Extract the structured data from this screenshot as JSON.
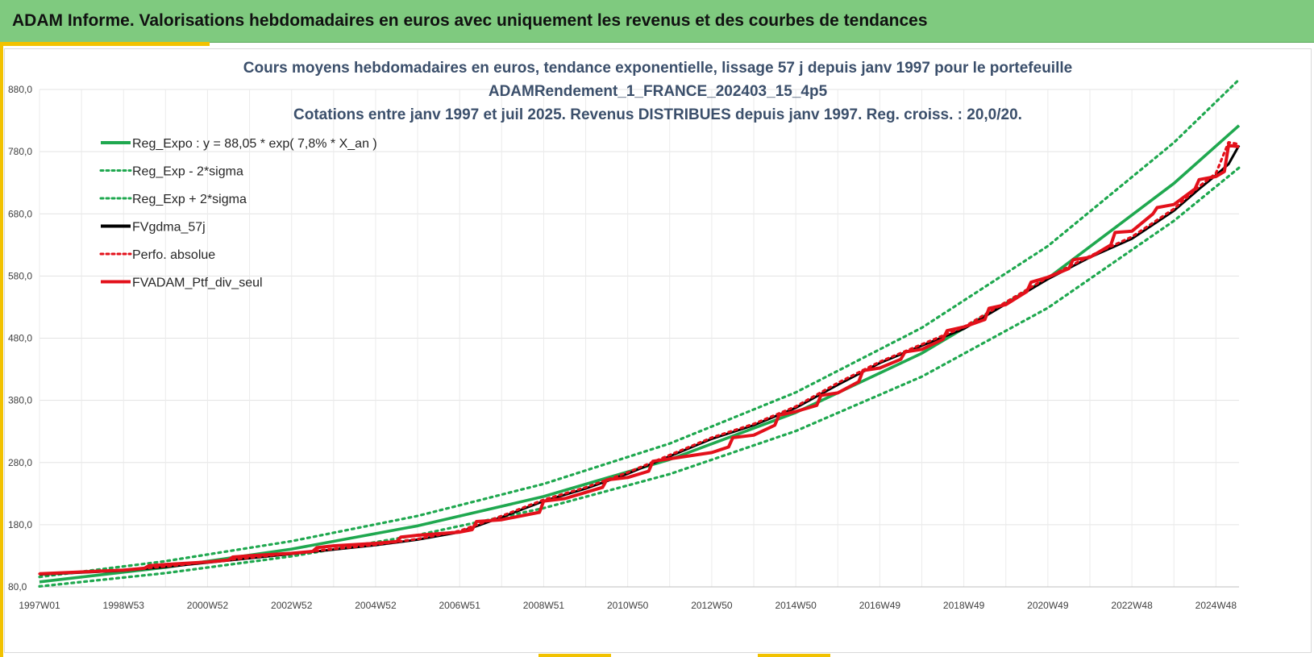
{
  "page": {
    "header_title": "ADAM Informe. Valorisations hebdomadaires en euros avec uniquement les revenus et des courbes de tendances"
  },
  "colors": {
    "header_bg": "#7fca7f",
    "accent": "#f2c200",
    "reg_green": "#1fa84f",
    "series_black": "#000000",
    "series_red": "#e3101a"
  },
  "chart_data": {
    "type": "line",
    "title_lines": [
      "Cours moyens hebdomadaires  en euros, tendance exponentielle, lissage 57 j depuis janv 1997 pour le portefeuille",
      "ADAMRendement_1_FRANCE_202403_15_4p5",
      "Cotations  entre janv 1997 et juil 2025. Revenus DISTRIBUES depuis janv 1997. Reg. croiss. : 20,0/20."
    ],
    "xlabel": "",
    "ylabel": "",
    "x_range": [
      1997.0,
      2025.55
    ],
    "x_tick_labels": [
      "1997W01",
      "1998W53",
      "2000W52",
      "2002W52",
      "2004W52",
      "2006W51",
      "2008W51",
      "2010W50",
      "2012W50",
      "2014W50",
      "2016W49",
      "2018W49",
      "2020W49",
      "2022W48",
      "2024W48"
    ],
    "x_tick_values": [
      1997.0,
      1999.0,
      2001.0,
      2003.0,
      2005.0,
      2007.0,
      2009.0,
      2011.0,
      2013.0,
      2015.0,
      2017.0,
      2019.0,
      2021.0,
      2023.0,
      2025.0
    ],
    "y_tick_labels": [
      "80,0",
      "180,0",
      "280,0",
      "380,0",
      "480,0",
      "580,0",
      "680,0",
      "780,0",
      "880,0"
    ],
    "ylim": [
      80,
      880
    ],
    "grid": true,
    "legend_position": "top-left",
    "regression": {
      "label": "Reg_Expo : y = 88,05 * exp( 7,8% *  X_an )",
      "intercept": 88.05,
      "rate": 0.078,
      "sigma_factor": 1.09
    },
    "series": [
      {
        "name": "Reg_Expo : y = 88,05 * exp( 7,8% *  X_an )",
        "style": "solid",
        "color": "#1fa84f",
        "x": [
          1997.0,
          2000.0,
          2003.0,
          2006.0,
          2009.0,
          2012.0,
          2015.0,
          2018.0,
          2021.0,
          2024.0,
          2025.55
        ],
        "values": [
          88.1,
          111.4,
          140.8,
          178.1,
          225.3,
          284.9,
          360.3,
          455.7,
          576.3,
          728.9,
          822.0
        ]
      },
      {
        "name": "Reg_Exp - 2*sigma",
        "style": "dotted",
        "color": "#1fa84f",
        "x": [
          1997.0,
          2000.0,
          2003.0,
          2006.0,
          2009.0,
          2012.0,
          2015.0,
          2018.0,
          2021.0,
          2024.0,
          2025.55
        ],
        "values": [
          80.8,
          102.2,
          129.2,
          163.4,
          206.7,
          261.4,
          330.6,
          418.1,
          528.7,
          668.7,
          754.1
        ]
      },
      {
        "name": "Reg_Exp + 2*sigma",
        "style": "dotted",
        "color": "#1fa84f",
        "x": [
          1997.0,
          2000.0,
          2003.0,
          2006.0,
          2009.0,
          2012.0,
          2015.0,
          2018.0,
          2021.0,
          2024.0,
          2025.55
        ],
        "values": [
          96.0,
          121.4,
          153.5,
          194.1,
          245.6,
          310.5,
          392.7,
          496.7,
          628.2,
          794.5,
          896.0
        ]
      },
      {
        "name": "FVgdma_57j",
        "style": "solid",
        "color": "#000000",
        "x": [
          1997.0,
          1998.0,
          1999.0,
          2000.0,
          2001.0,
          2002.0,
          2003.0,
          2004.0,
          2005.0,
          2006.0,
          2007.0,
          2008.0,
          2009.0,
          2010.0,
          2011.0,
          2012.0,
          2013.0,
          2014.0,
          2015.0,
          2016.0,
          2017.0,
          2018.0,
          2019.0,
          2020.0,
          2021.0,
          2022.0,
          2023.0,
          2024.0,
          2024.6,
          2025.0,
          2025.3,
          2025.55
        ],
        "values": [
          100,
          103,
          106,
          112,
          119,
          126,
          133,
          140,
          147,
          156,
          168,
          192,
          218,
          238,
          262,
          290,
          318,
          340,
          368,
          405,
          440,
          468,
          495,
          535,
          575,
          610,
          640,
          685,
          720,
          742,
          760,
          790
        ]
      },
      {
        "name": "Perfo. absolue",
        "style": "dotted",
        "color": "#e3101a",
        "x": [
          1997.0,
          1998.0,
          1999.0,
          2000.0,
          2001.0,
          2002.0,
          2003.0,
          2004.0,
          2005.0,
          2006.0,
          2007.0,
          2008.0,
          2009.0,
          2010.0,
          2011.0,
          2012.0,
          2013.0,
          2014.0,
          2015.0,
          2016.0,
          2017.0,
          2018.0,
          2019.0,
          2020.0,
          2021.0,
          2022.0,
          2023.0,
          2024.0,
          2024.6,
          2025.0,
          2025.3,
          2025.55
        ],
        "values": [
          101,
          104,
          107,
          113,
          120,
          127,
          134,
          141,
          148,
          157,
          170,
          194,
          220,
          240,
          264,
          292,
          320,
          342,
          370,
          408,
          442,
          470,
          498,
          538,
          578,
          612,
          643,
          688,
          724,
          745,
          795,
          792
        ]
      },
      {
        "name": "FVADAM_Ptf_div_seul",
        "style": "solid",
        "color": "#e3101a",
        "x": [
          1997.0,
          1998.0,
          1999.0,
          1999.5,
          1999.6,
          2000.0,
          2001.0,
          2001.5,
          2001.6,
          2002.0,
          2003.0,
          2003.5,
          2003.6,
          2004.0,
          2005.0,
          2005.5,
          2005.6,
          2006.0,
          2007.0,
          2007.3,
          2007.4,
          2008.0,
          2008.9,
          2009.0,
          2009.5,
          2010.0,
          2010.4,
          2010.5,
          2011.0,
          2011.5,
          2011.6,
          2012.0,
          2013.0,
          2013.4,
          2013.5,
          2014.0,
          2014.5,
          2014.6,
          2015.0,
          2015.5,
          2015.6,
          2016.0,
          2016.5,
          2016.6,
          2017.0,
          2017.5,
          2017.6,
          2018.0,
          2018.5,
          2018.6,
          2019.0,
          2019.5,
          2019.6,
          2020.0,
          2020.5,
          2020.6,
          2021.0,
          2021.5,
          2021.6,
          2022.0,
          2022.5,
          2022.6,
          2023.0,
          2023.5,
          2023.6,
          2024.0,
          2024.5,
          2024.6,
          2025.0,
          2025.2,
          2025.3,
          2025.55
        ],
        "values": [
          101,
          104,
          107,
          110,
          114,
          116,
          120,
          123,
          128,
          130,
          134,
          137,
          143,
          146,
          150,
          153,
          160,
          163,
          168,
          172,
          185,
          188,
          200,
          218,
          222,
          232,
          240,
          252,
          256,
          266,
          282,
          286,
          296,
          305,
          320,
          324,
          340,
          356,
          362,
          372,
          388,
          392,
          410,
          428,
          432,
          446,
          458,
          462,
          478,
          492,
          498,
          510,
          528,
          534,
          555,
          570,
          578,
          592,
          606,
          610,
          630,
          650,
          652,
          680,
          690,
          695,
          720,
          735,
          740,
          748,
          790,
          788
        ]
      }
    ]
  }
}
